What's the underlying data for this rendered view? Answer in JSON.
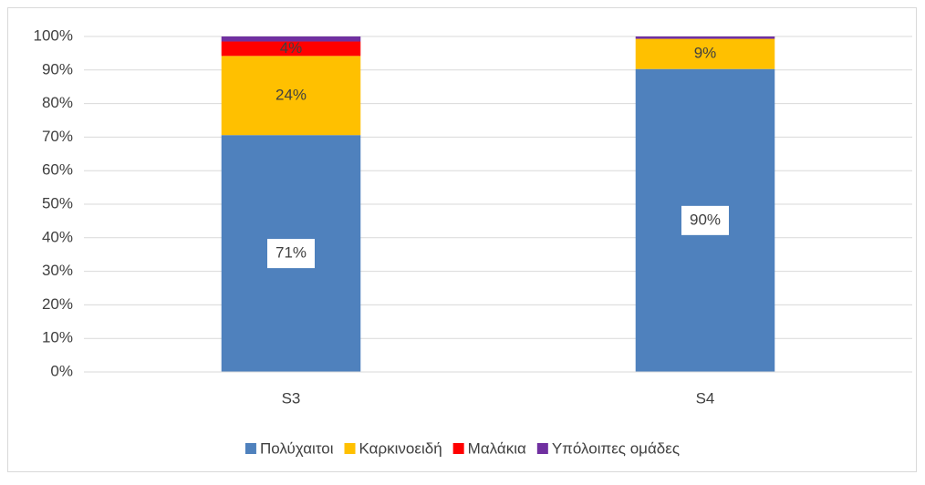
{
  "chart_data": {
    "type": "stacked_bar",
    "categories": [
      "S3",
      "S4"
    ],
    "series": [
      {
        "name": "Πολύχαιτοι",
        "color": "#4f81bd",
        "values": [
          70.6,
          90.3
        ],
        "value_labels": [
          "71%",
          "90%"
        ]
      },
      {
        "name": "Καρκινοειδή",
        "color": "#ffc000",
        "values": [
          23.6,
          9.0
        ],
        "value_labels": [
          "24%",
          "9%"
        ]
      },
      {
        "name": "Μαλάκια",
        "color": "#ff0000",
        "values": [
          4.3,
          0
        ],
        "value_labels": [
          "4%",
          null
        ]
      },
      {
        "name": "Υπόλοιπες ομάδες",
        "color": "#7030a0",
        "values": [
          1.5,
          0.7
        ],
        "value_labels": [
          null,
          null
        ]
      }
    ],
    "ylim": [
      0,
      100
    ],
    "yticks": [
      {
        "value": 0,
        "label": "0%"
      },
      {
        "value": 10,
        "label": "10%"
      },
      {
        "value": 20,
        "label": "20%"
      },
      {
        "value": 30,
        "label": "30%"
      },
      {
        "value": 40,
        "label": "40%"
      },
      {
        "value": 50,
        "label": "50%"
      },
      {
        "value": 60,
        "label": "60%"
      },
      {
        "value": 70,
        "label": "70%"
      },
      {
        "value": 80,
        "label": "80%"
      },
      {
        "value": 90,
        "label": "90%"
      },
      {
        "value": 100,
        "label": "100%"
      }
    ],
    "grid": true
  }
}
